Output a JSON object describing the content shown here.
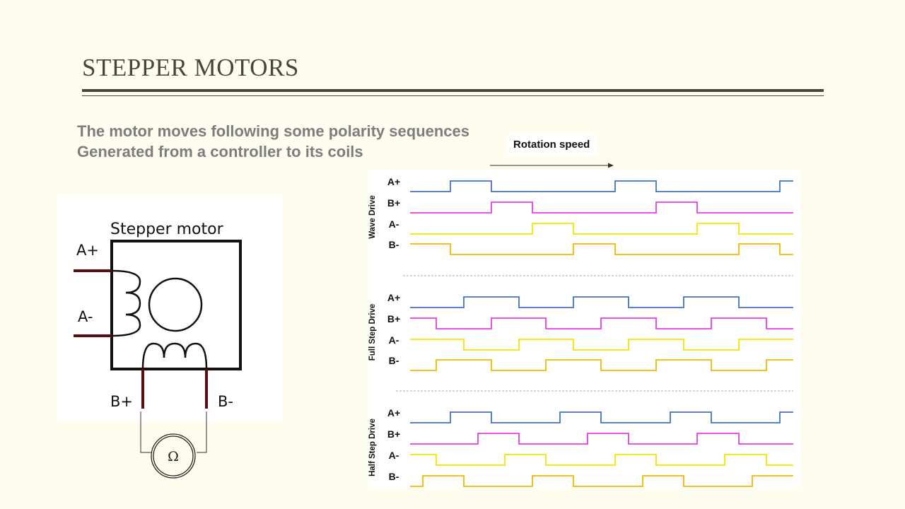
{
  "slide": {
    "title": "STEPPER MOTORS",
    "line1": "The motor moves following some polarity sequences",
    "line2": "Generated from a controller to its coils"
  },
  "motor": {
    "title": "Stepper motor",
    "a_plus": "A+",
    "a_minus": "A-",
    "b_plus": "B+",
    "b_minus": "B-",
    "ohm": "Ω"
  },
  "timing": {
    "rotation_label": "Rotation speed",
    "sections": [
      {
        "name": "Wave Drive",
        "labels": [
          "A+",
          "B+",
          "A-",
          "B-"
        ]
      },
      {
        "name": "Full Step Drive",
        "labels": [
          "A+",
          "B+",
          "A-",
          "B-"
        ]
      },
      {
        "name": "Half Step Drive",
        "labels": [
          "A+",
          "B+",
          "A-",
          "B-"
        ]
      }
    ],
    "colors": {
      "A+": "#4472c4",
      "B+": "#e83ee8",
      "A-": "#f2e600",
      "B-": "#f5b800"
    }
  }
}
